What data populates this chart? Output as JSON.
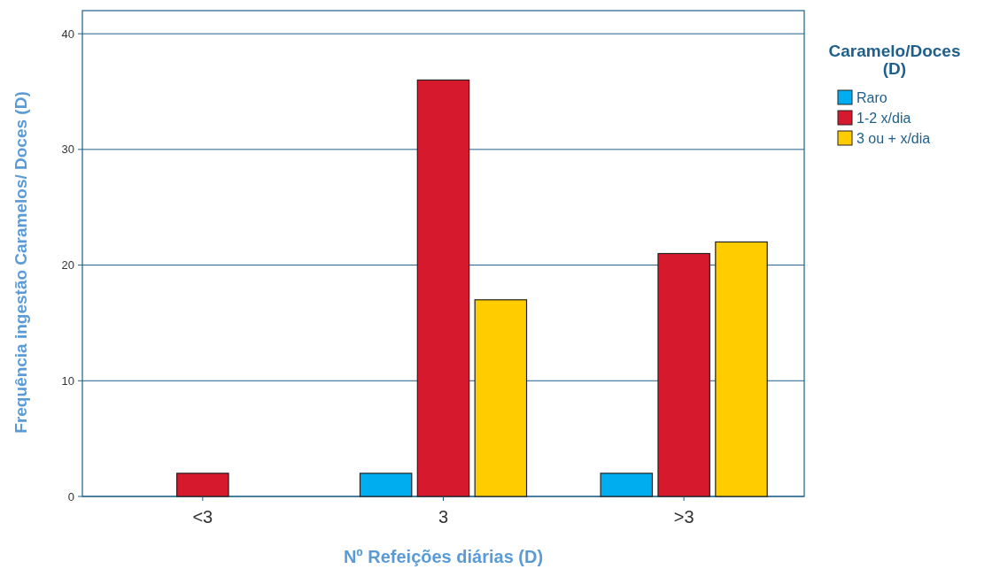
{
  "chart_data": {
    "type": "bar",
    "xlabel": "Nº Refeições diárias (D)",
    "ylabel": "Frequência ingestão Caramelos/ Doces (D)",
    "legend_title": "Caramelo/Doces\n(D)",
    "categories": [
      "<3",
      "3",
      ">3"
    ],
    "series": [
      {
        "name": "Raro",
        "color": "#00aeef",
        "values": [
          null,
          2,
          2
        ]
      },
      {
        "name": "1-2 x/dia",
        "color": "#d7192d",
        "values": [
          2,
          36,
          21
        ]
      },
      {
        "name": "3 ou + x/dia",
        "color": "#ffcc00",
        "values": [
          null,
          17,
          22
        ]
      }
    ],
    "ylim": [
      0,
      42
    ],
    "yticks": [
      0,
      10,
      20,
      30,
      40
    ],
    "grid": "y",
    "legend": "top right"
  }
}
